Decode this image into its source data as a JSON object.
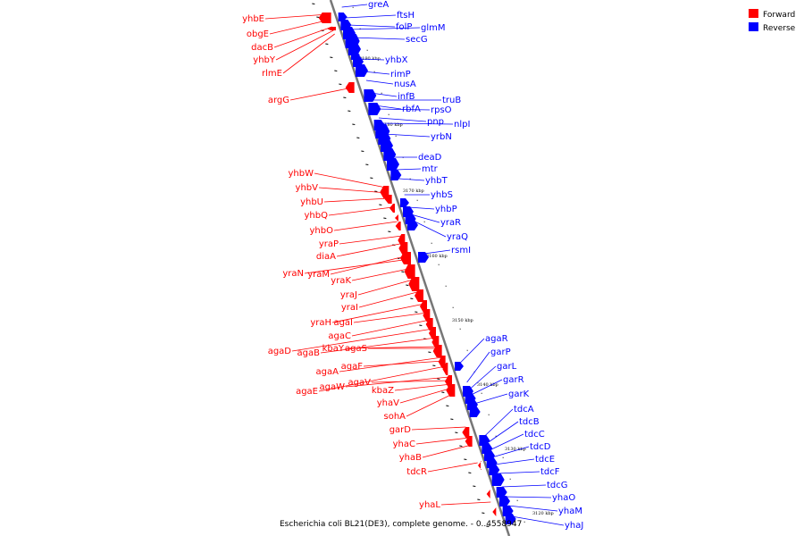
{
  "caption": "Escherichia coli BL21(DE3), complete genome. - 0..4558947",
  "legend": {
    "forward": {
      "label": "Forward",
      "color": "#ff0000"
    },
    "reverse": {
      "label": "Reverse",
      "color": "#0000ff"
    }
  },
  "colors": {
    "forward": "#ff0000",
    "reverse": "#0000ff",
    "backbone": "#777777",
    "ticks": "#000000"
  },
  "kbp_labels": [
    "3190 kbp",
    "3180 kbp",
    "3170 kbp",
    "3160 kbp",
    "3150 kbp",
    "3140 kbp",
    "3130 kbp",
    "3120 kbp"
  ],
  "reverse_genes": [
    "greA",
    "ftsH",
    "folP",
    "glmM",
    "secG",
    "yhbX",
    "rimP",
    "nusA",
    "infB",
    "truB",
    "rbfA",
    "rpsO",
    "pnp",
    "nlpI",
    "yrbN",
    "deaD",
    "mtr",
    "yhbT",
    "yhbS",
    "yhbP",
    "yraR",
    "yraQ",
    "rsmI",
    "agaR",
    "garP",
    "garL",
    "garR",
    "garK",
    "tdcA",
    "tdcB",
    "tdcC",
    "tdcD",
    "tdcE",
    "tdcF",
    "tdcG",
    "yhaO",
    "yhaM",
    "yhaJ"
  ],
  "forward_genes": [
    "yhbE",
    "obgE",
    "dacB",
    "yhbY",
    "rlmE",
    "argG",
    "yhbW",
    "yhbV",
    "yhbU",
    "yhbQ",
    "yhbO",
    "yraP",
    "diaA",
    "yraN",
    "yraM",
    "yraK",
    "yraJ",
    "yraI",
    "yraH",
    "agaI",
    "agaC",
    "agaD",
    "agaB",
    "kbaY",
    "agaS",
    "agaA",
    "agaF",
    "agaE",
    "agaW",
    "agaV",
    "kbaZ",
    "yhaV",
    "sohA",
    "garD",
    "yhaC",
    "yhaB",
    "tdcR",
    "yhaL"
  ]
}
